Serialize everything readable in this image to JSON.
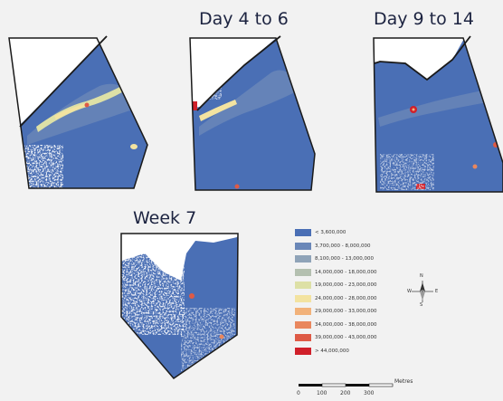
{
  "panels": [
    {
      "title": ""
    },
    {
      "title": "Day 4 to 6"
    },
    {
      "title": "Day 9 to 14"
    },
    {
      "title": "Week 7"
    }
  ],
  "legend": [
    {
      "label": "< 3,600,000",
      "color": "#4a6fb5"
    },
    {
      "label": "3,700,000 - 8,000,000",
      "color": "#6a87b8"
    },
    {
      "label": "8,100,000 - 13,000,000",
      "color": "#8fa3b8"
    },
    {
      "label": "14,000,000 - 18,000,000",
      "color": "#b4c0b0"
    },
    {
      "label": "19,000,000 - 23,000,000",
      "color": "#dde0a6"
    },
    {
      "label": "24,000,000 - 28,000,000",
      "color": "#f3e3a0"
    },
    {
      "label": "29,000,000 - 33,000,000",
      "color": "#f2b27a"
    },
    {
      "label": "34,000,000 - 38,000,000",
      "color": "#e9875e"
    },
    {
      "label": "39,000,000 - 43,000,000",
      "color": "#de5a45"
    },
    {
      "label": "> 44,000,000",
      "color": "#d0202a"
    }
  ],
  "scale_bar": {
    "unit": "Metres",
    "ticks": [
      "0",
      "100",
      "200",
      "300"
    ]
  },
  "north_arrow": {
    "n": "N",
    "s": "S",
    "e": "E",
    "w": "W"
  },
  "colors": {
    "water": "#4a6fb5",
    "land": "#ffffff",
    "boundary": "#1a1a1a"
  }
}
